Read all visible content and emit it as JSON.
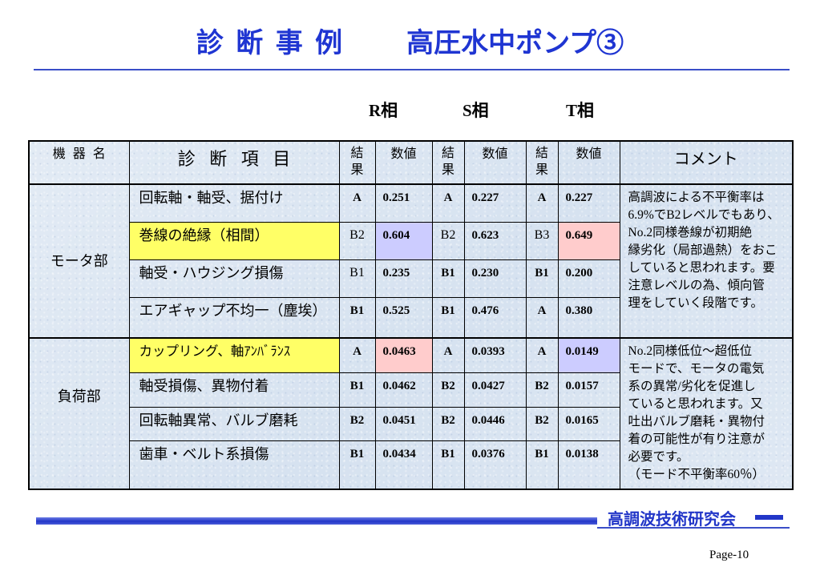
{
  "theme": {
    "title_color": "#1f35d2",
    "rule_color": "#3a4ec8",
    "footer_color": "#2236c8",
    "table_background": "#d6e2f0",
    "highlight_yellow": "#ffff66",
    "highlight_lavender": "#ccccff",
    "highlight_pink": "#ffcccc"
  },
  "title": {
    "main": "診 断 事 例",
    "subject": "高圧水中ポンプ③"
  },
  "phase_headers": {
    "r": "R相",
    "s": "S相",
    "t": "T相"
  },
  "table": {
    "headers": {
      "device": "機 器 名",
      "item": "診 断 項 目",
      "r_result": "結果",
      "r_value": "数値",
      "s_result": "結果",
      "s_value": "数値",
      "t_result": "結果",
      "t_value": "数値",
      "comment": "コメント"
    },
    "groups": [
      {
        "name": "モータ部",
        "comment_lines": [
          "高調波による不平衡率は",
          "6.9%でB2レベルでもあり、",
          "No.2同様巻線が初期絶",
          "縁劣化（局部過熱）をおこ",
          "していると思われます。要",
          "注意レベルの為、傾向管",
          "理をしていく段階です。"
        ],
        "rows": [
          {
            "item": "回転軸・軸受、据付け",
            "r": {
              "result": "A",
              "value": "0.251"
            },
            "s": {
              "result": "A",
              "value": "0.227"
            },
            "t": {
              "result": "A",
              "value": "0.227"
            }
          },
          {
            "item": "巻線の絶縁（相間）",
            "item_bg": "#ffff66",
            "r": {
              "result": "B2",
              "value": "0.604",
              "bg": "#ccccff"
            },
            "s": {
              "result": "B2",
              "value": "0.623"
            },
            "t": {
              "result": "B3",
              "value": "0.649",
              "bg": "#ffcccc"
            }
          },
          {
            "item": "軸受・ハウジング損傷",
            "r": {
              "result": "B1",
              "value": "0.235"
            },
            "s": {
              "result": "B1",
              "value": "0.230"
            },
            "t": {
              "result": "B1",
              "value": "0.200"
            }
          },
          {
            "item": "エアギャップ不均一（塵埃）",
            "r": {
              "result": "B1",
              "value": "0.525"
            },
            "s": {
              "result": "B1",
              "value": "0.476"
            },
            "t": {
              "result": "A",
              "value": "0.380"
            }
          }
        ]
      },
      {
        "name": "負荷部",
        "comment_lines": [
          "No.2同様低位～超低位",
          "モードで、モータの電気",
          "系の異常/劣化を促進し",
          "ていると思われます。又",
          "吐出バルブ磨耗・異物付",
          "着の可能性が有り注意が",
          "必要です。",
          "（モード不平衡率60％）"
        ],
        "rows": [
          {
            "item": "カップリング、軸ｱﾝﾊﾞﾗﾝｽ",
            "item_bg": "#ffff66",
            "r": {
              "result": "A",
              "value": "0.0463",
              "bg": "#ffcccc"
            },
            "s": {
              "result": "A",
              "value": "0.0393"
            },
            "t": {
              "result": "A",
              "value": "0.0149",
              "bg": "#ccccff"
            }
          },
          {
            "item": "軸受損傷、異物付着",
            "r": {
              "result": "B1",
              "value": "0.0462"
            },
            "s": {
              "result": "B2",
              "value": "0.0427"
            },
            "t": {
              "result": "B2",
              "value": "0.0157"
            }
          },
          {
            "item": "回転軸異常、バルブ磨耗",
            "r": {
              "result": "B2",
              "value": "0.0451"
            },
            "s": {
              "result": "B2",
              "value": "0.0446"
            },
            "t": {
              "result": "B2",
              "value": "0.0165"
            }
          },
          {
            "item": "歯車・ベルト系損傷",
            "r": {
              "result": "B1",
              "value": "0.0434"
            },
            "s": {
              "result": "B1",
              "value": "0.0376"
            },
            "t": {
              "result": "B1",
              "value": "0.0138"
            }
          }
        ]
      }
    ]
  },
  "footer": {
    "organization": "高調波技術研究会",
    "page": "Page-10"
  }
}
